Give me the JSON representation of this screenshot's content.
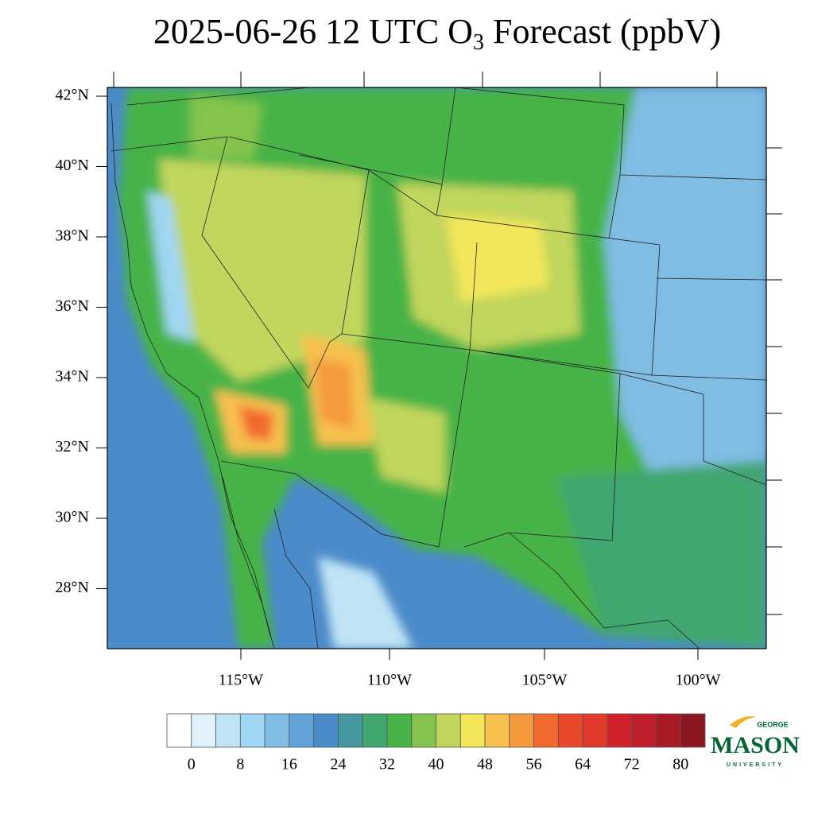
{
  "title": {
    "prefix": "2025-06-26 12 UTC O",
    "subscript": "3",
    "suffix": " Forecast (ppbV)"
  },
  "map": {
    "lat_labels": [
      "42°N",
      "40°N",
      "38°N",
      "36°N",
      "34°N",
      "32°N",
      "30°N",
      "28°N"
    ],
    "lon_labels": [
      "115°W",
      "110°W",
      "105°W",
      "100°W"
    ]
  },
  "colorbar": {
    "levels": [
      0,
      8,
      16,
      24,
      32,
      40,
      48,
      56,
      64,
      72,
      80
    ],
    "colors": [
      "#ffffff",
      "#e0f1fb",
      "#c0e4f6",
      "#a0d6f3",
      "#80bde3",
      "#62a3d9",
      "#4a8bc9",
      "#45999e",
      "#42a670",
      "#47b347",
      "#84c44e",
      "#c1d65c",
      "#f4e65a",
      "#f8c04f",
      "#f59a3c",
      "#f26a2e",
      "#e8492b",
      "#df3a2a",
      "#d1222b",
      "#bf1e2c",
      "#a81b24",
      "#8c1620"
    ]
  },
  "logo": {
    "top": "GEORGE",
    "main": "MASON",
    "bottom": "UNIVERSITY"
  }
}
